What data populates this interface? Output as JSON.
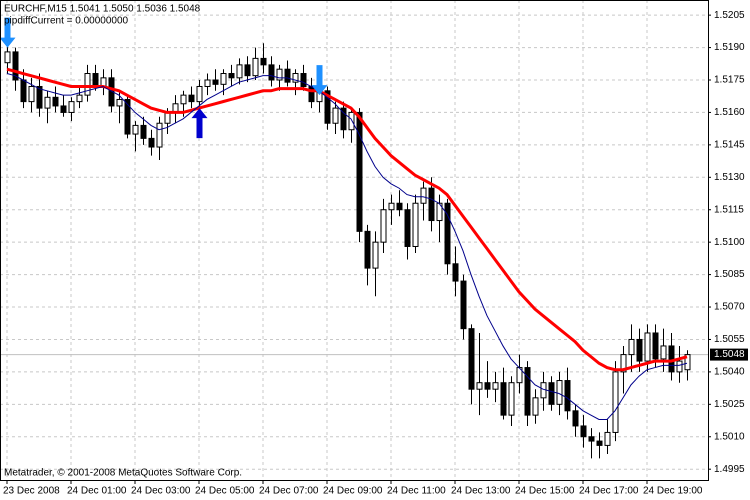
{
  "chart_data": {
    "type": "candlestick",
    "title": "EURCHF,M15  1.5041 1.5050 1.5036 1.5048",
    "subtitle": "pipdiffCurrent = 0.00000000",
    "annotation": "Metatrader, © 2001-2008 MetaQuotes Software Corp.",
    "categories": [
      "23 Dec 2008",
      null,
      null,
      null,
      null,
      null,
      null,
      null,
      "24 Dec 01:00",
      null,
      null,
      null,
      null,
      null,
      null,
      null,
      "24 Dec 03:00",
      null,
      null,
      null,
      null,
      null,
      null,
      null,
      "24 Dec 05:00",
      null,
      null,
      null,
      null,
      null,
      null,
      null,
      "24 Dec 07:00",
      null,
      null,
      null,
      null,
      null,
      null,
      null,
      "24 Dec 09:00",
      null,
      null,
      null,
      null,
      null,
      null,
      null,
      "24 Dec 11:00",
      null,
      null,
      null,
      null,
      null,
      null,
      null,
      "24 Dec 13:00",
      null,
      null,
      null,
      null,
      null,
      null,
      null,
      "24 Dec 15:00",
      null,
      null,
      null,
      null,
      null,
      null,
      null,
      "24 Dec 17:00",
      null,
      null,
      null,
      null,
      null,
      null,
      null,
      "24 Dec 19:00",
      null,
      null,
      null,
      null,
      null
    ],
    "open": [
      1.5183,
      1.5188,
      1.5175,
      1.5165,
      1.5172,
      1.5162,
      1.5167,
      1.5163,
      1.516,
      1.5165,
      1.5168,
      1.5178,
      1.5172,
      1.5176,
      1.5163,
      1.5166,
      1.515,
      1.5154,
      1.5148,
      1.5144,
      1.5155,
      1.516,
      1.5164,
      1.5168,
      1.5165,
      1.5172,
      1.5175,
      1.5173,
      1.5178,
      1.5176,
      1.5182,
      1.5177,
      1.5185,
      1.5182,
      1.5175,
      1.518,
      1.5174,
      1.5178,
      1.5172,
      1.5165,
      1.517,
      1.5155,
      1.5162,
      1.5152,
      1.516,
      1.5105,
      1.5088,
      1.51,
      1.5115,
      1.5118,
      1.5115,
      1.5098,
      1.5118,
      1.5125,
      1.511,
      1.5118,
      1.509,
      1.5082,
      1.506,
      1.5032,
      1.5035,
      1.5032,
      1.5035,
      1.502,
      1.5035,
      1.5042,
      1.502,
      1.5028,
      1.5035,
      1.5025,
      1.5036,
      1.5022,
      1.5015,
      1.501,
      1.5008,
      1.5006,
      1.5012,
      1.504,
      1.5048,
      1.5055,
      1.5045,
      1.5058,
      1.5046,
      1.5052,
      1.504,
      1.5041
    ],
    "high": [
      1.5195,
      1.519,
      1.518,
      1.5176,
      1.5178,
      1.517,
      1.5172,
      1.5168,
      1.5167,
      1.5172,
      1.5182,
      1.5182,
      1.518,
      1.518,
      1.517,
      1.5168,
      1.5156,
      1.5158,
      1.5152,
      1.5158,
      1.5162,
      1.5168,
      1.517,
      1.5172,
      1.5175,
      1.5178,
      1.518,
      1.518,
      1.5182,
      1.5185,
      1.5186,
      1.519,
      1.5192,
      1.5186,
      1.5182,
      1.5184,
      1.518,
      1.5182,
      1.5176,
      1.5178,
      1.5172,
      1.5165,
      1.5165,
      1.5162,
      1.5162,
      1.5108,
      1.5105,
      1.512,
      1.5122,
      1.5124,
      1.5118,
      1.5122,
      1.5128,
      1.513,
      1.5122,
      1.512,
      1.5098,
      1.5085,
      1.5062,
      1.5058,
      1.5045,
      1.504,
      1.5042,
      1.5038,
      1.5048,
      1.5045,
      1.5032,
      1.504,
      1.5038,
      1.504,
      1.5042,
      1.5025,
      1.502,
      1.5014,
      1.5012,
      1.5018,
      1.5045,
      1.5052,
      1.5062,
      1.506,
      1.5062,
      1.5062,
      1.506,
      1.5058,
      1.5052,
      1.505
    ],
    "low": [
      1.5178,
      1.517,
      1.5162,
      1.516,
      1.5158,
      1.5155,
      1.516,
      1.5158,
      1.5156,
      1.5162,
      1.5165,
      1.517,
      1.5168,
      1.516,
      1.5155,
      1.5148,
      1.5142,
      1.5145,
      1.514,
      1.5138,
      1.515,
      1.5155,
      1.5158,
      1.5162,
      1.5162,
      1.5168,
      1.517,
      1.5168,
      1.5172,
      1.5173,
      1.5174,
      1.5175,
      1.5178,
      1.5172,
      1.517,
      1.5172,
      1.5168,
      1.517,
      1.5162,
      1.516,
      1.5152,
      1.515,
      1.5148,
      1.5146,
      1.51,
      1.508,
      1.5075,
      1.5095,
      1.5108,
      1.5112,
      1.5092,
      1.5095,
      1.511,
      1.5105,
      1.51,
      1.5085,
      1.5075,
      1.5055,
      1.5025,
      1.502,
      1.5028,
      1.5026,
      1.5018,
      1.5015,
      1.503,
      1.5015,
      1.5016,
      1.5022,
      1.5022,
      1.502,
      1.5018,
      1.501,
      1.5005,
      1.5,
      1.5,
      1.5002,
      1.5008,
      1.503,
      1.504,
      1.504,
      1.504,
      1.5042,
      1.504,
      1.5036,
      1.5035,
      1.5036
    ],
    "close": [
      1.5188,
      1.5175,
      1.5165,
      1.5172,
      1.5162,
      1.5167,
      1.5163,
      1.516,
      1.5165,
      1.5168,
      1.5178,
      1.5172,
      1.5176,
      1.5163,
      1.5166,
      1.515,
      1.5154,
      1.5148,
      1.5144,
      1.5155,
      1.516,
      1.5164,
      1.5168,
      1.5165,
      1.5172,
      1.5175,
      1.5173,
      1.5178,
      1.5176,
      1.5182,
      1.5177,
      1.5185,
      1.5182,
      1.5175,
      1.518,
      1.5174,
      1.5178,
      1.5172,
      1.5165,
      1.517,
      1.5155,
      1.5162,
      1.5152,
      1.516,
      1.5105,
      1.5088,
      1.51,
      1.5115,
      1.5118,
      1.5115,
      1.5098,
      1.5118,
      1.5125,
      1.511,
      1.5118,
      1.509,
      1.5082,
      1.506,
      1.5032,
      1.5035,
      1.5032,
      1.5035,
      1.502,
      1.5035,
      1.5042,
      1.502,
      1.5028,
      1.5035,
      1.5025,
      1.5036,
      1.5022,
      1.5015,
      1.501,
      1.5008,
      1.5006,
      1.5012,
      1.504,
      1.5048,
      1.5055,
      1.5045,
      1.5058,
      1.5046,
      1.5052,
      1.504,
      1.5045,
      1.5048
    ],
    "up_color": "#ffffff",
    "down_color": "#000000",
    "lines": [
      {
        "color": "#ff0000",
        "values": [
          1.518,
          1.5179,
          1.5178,
          1.5177,
          1.5176,
          1.5175,
          1.5174,
          1.5173,
          1.5172,
          1.5172,
          1.5172,
          1.5172,
          1.5172,
          1.5171,
          1.517,
          1.5168,
          1.5166,
          1.5164,
          1.5162,
          1.5161,
          1.516,
          1.516,
          1.516,
          1.5161,
          1.5162,
          1.5163,
          1.5164,
          1.5165,
          1.5166,
          1.5167,
          1.5168,
          1.5169,
          1.517,
          1.517,
          1.5171,
          1.5171,
          1.5171,
          1.5171,
          1.517,
          1.517,
          1.5168,
          1.5166,
          1.5164,
          1.5162,
          1.5158,
          1.5153,
          1.5148,
          1.5144,
          1.514,
          1.5137,
          1.5134,
          1.5131,
          1.5129,
          1.5127,
          1.5125,
          1.5122,
          1.5117,
          1.5112,
          1.5107,
          1.5102,
          1.5097,
          1.5092,
          1.5087,
          1.5082,
          1.5077,
          1.5073,
          1.5069,
          1.5066,
          1.5063,
          1.506,
          1.5057,
          1.5054,
          1.505,
          1.5047,
          1.5044,
          1.5042,
          1.5041,
          1.5041,
          1.5042,
          1.5043,
          1.5044,
          1.5045,
          1.5045,
          1.5045,
          1.5046,
          1.5047
        ]
      },
      {
        "color": "#00008b",
        "values": [
          1.5178,
          1.5177,
          1.5175,
          1.5173,
          1.5171,
          1.517,
          1.5169,
          1.5168,
          1.5168,
          1.5169,
          1.517,
          1.5171,
          1.5172,
          1.517,
          1.5168,
          1.5164,
          1.516,
          1.5157,
          1.5154,
          1.5152,
          1.5153,
          1.5155,
          1.5157,
          1.516,
          1.5163,
          1.5166,
          1.5168,
          1.517,
          1.5172,
          1.5174,
          1.5175,
          1.5176,
          1.5177,
          1.5177,
          1.5176,
          1.5176,
          1.5175,
          1.5174,
          1.5172,
          1.517,
          1.5167,
          1.5164,
          1.516,
          1.5157,
          1.515,
          1.5142,
          1.5135,
          1.513,
          1.5127,
          1.5125,
          1.5122,
          1.5121,
          1.5121,
          1.512,
          1.5118,
          1.5113,
          1.5105,
          1.5096,
          1.5085,
          1.5075,
          1.5066,
          1.5059,
          1.5052,
          1.5046,
          1.5042,
          1.5038,
          1.5034,
          1.5032,
          1.5031,
          1.503,
          1.5028,
          1.5025,
          1.5022,
          1.502,
          1.5018,
          1.5018,
          1.5022,
          1.5028,
          1.5034,
          1.5038,
          1.5041,
          1.5042,
          1.5043,
          1.5043,
          1.5043,
          1.5044
        ]
      }
    ],
    "arrows": [
      {
        "index": 0,
        "direction": "down",
        "value": 1.519,
        "color": "#1e90ff"
      },
      {
        "index": 24,
        "direction": "up",
        "value": 1.5162,
        "color": "#0000cd"
      },
      {
        "index": 39,
        "direction": "down",
        "value": 1.5168,
        "color": "#1e90ff"
      }
    ],
    "last_price": 1.5048,
    "ylim": [
      1.499,
      1.5212
    ],
    "yticks": [
      1.5205,
      {
        "value": 1.519,
        "label": "1.5190"
      },
      1.5175,
      {
        "value": 1.516,
        "label": "1.5160"
      },
      1.5145,
      {
        "value": 1.513,
        "label": "1.5130"
      },
      1.5115,
      {
        "value": 1.51,
        "label": "1.5100"
      },
      1.5085,
      {
        "value": 1.507,
        "label": "1.5070"
      },
      1.5055,
      {
        "value": 1.504,
        "label": "1.5040"
      },
      1.5025,
      {
        "value": 1.501,
        "label": "1.5010"
      },
      1.4995
    ],
    "grid": true
  }
}
